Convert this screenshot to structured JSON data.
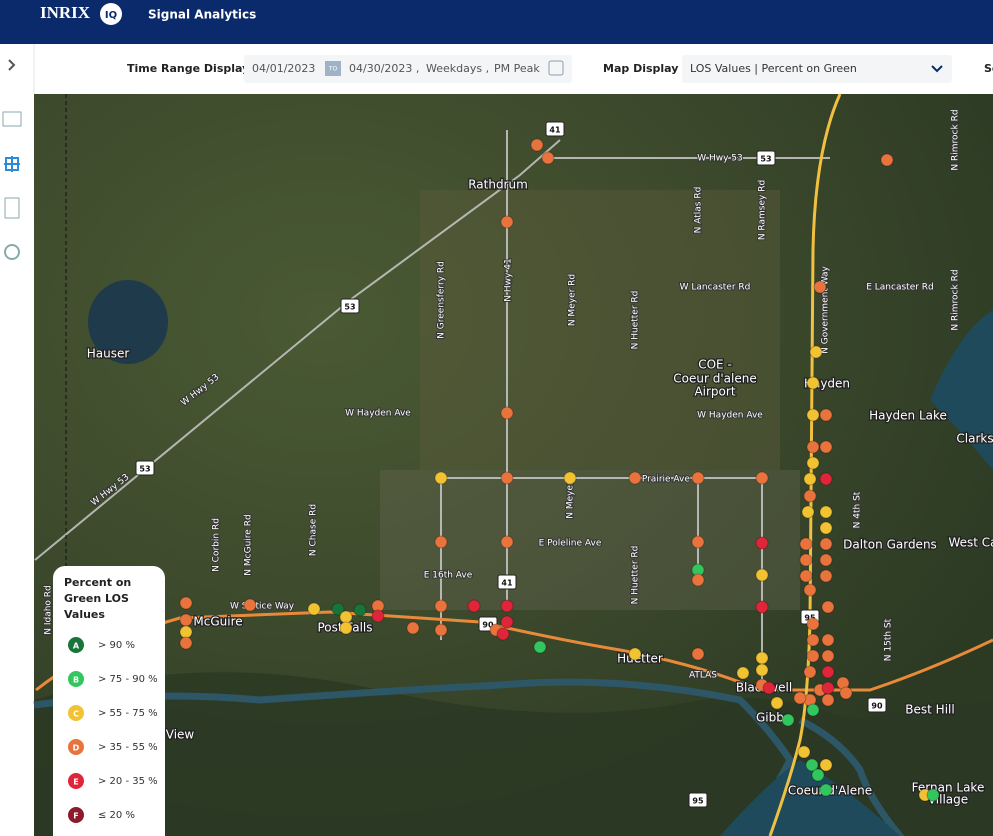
{
  "header": {
    "logo": "INRIX",
    "logo_badge": "IQ",
    "app_title": "Signal Analytics"
  },
  "toolbar": {
    "time_range_label": "Time Range Display",
    "start_date": "04/01/2023",
    "to_badge": "TO",
    "end_date": "04/30/2023 ,",
    "days": "Weekdays ,",
    "period": "PM Peak",
    "map_display_label": "Map Display",
    "map_display_value": "LOS Values | Percent on Green",
    "cut_text": "Se"
  },
  "map": {
    "places": [
      "Rathdrum",
      "Hauser",
      "Hayden",
      "Hayden Lake",
      "Clarks",
      "Dalton Gardens",
      "West Ca",
      "Post Falls",
      "McGuire",
      "Huetter",
      "Blackwell",
      "Gibbs",
      "Coeur d'Alene",
      "Best Hill",
      "Fernan Lake",
      "Village",
      "COE -",
      "Coeur d'alene",
      "Airport",
      "View"
    ],
    "roads": [
      "W Hwy 53",
      "W Lancaster Rd",
      "E Lancaster Rd",
      "W Hayden Ave",
      "W Hayden Ave",
      "W Prairie Ave",
      "E Poleline Ave",
      "E 16th Ave",
      "W Seltice Way",
      "W Hwy 53",
      "W Hwy 53",
      "ATLAS",
      "N Greensferry Rd",
      "N Hwy 41",
      "N Meyer Rd",
      "N Huetter Rd",
      "N Atlas Rd",
      "N Ramsey Rd",
      "N Government Way",
      "N Rimrock Rd",
      "N Corbin Rd",
      "N McGuire Rd",
      "N Chase Rd",
      "N Meyer",
      "N 4th St",
      "N 15th St",
      "N Idaho Rd",
      "N Rimrock Rd",
      "N Huetter Rd"
    ],
    "shields": [
      "41",
      "53",
      "53",
      "53",
      "41",
      "90",
      "95",
      "90",
      "95"
    ],
    "signals": [
      "D",
      "D",
      "D",
      "D",
      "C",
      "D",
      "C",
      "D",
      "D",
      "D",
      "D",
      "D",
      "D",
      "E",
      "B",
      "C",
      "D",
      "E",
      "D",
      "D",
      "C",
      "D",
      "D",
      "C",
      "A",
      "C",
      "C",
      "A",
      "D",
      "E",
      "D",
      "D",
      "D",
      "E",
      "D",
      "E",
      "E",
      "E",
      "B",
      "C",
      "D",
      "C",
      "C",
      "C",
      "D",
      "E",
      "C",
      "B",
      "D",
      "D",
      "D",
      "B",
      "D",
      "D",
      "D",
      "E",
      "E",
      "D",
      "D",
      "D",
      "D",
      "D",
      "D",
      "D",
      "D",
      "D",
      "D",
      "D",
      "D",
      "D",
      "D",
      "C",
      "C",
      "C",
      "D",
      "C",
      "E",
      "C",
      "D",
      "D",
      "C",
      "D",
      "C",
      "C",
      "D",
      "D",
      "C",
      "B",
      "B",
      "B",
      "C",
      "C",
      "B"
    ]
  },
  "legend": {
    "title_lines": [
      "Percent on",
      "Green LOS",
      "Values"
    ],
    "items": [
      {
        "grade": "A",
        "label": "> 90 %",
        "color": "#17753a"
      },
      {
        "grade": "B",
        "label": "> 75 - 90 %",
        "color": "#33c65e"
      },
      {
        "grade": "C",
        "label": "> 55 - 75 %",
        "color": "#f1c232"
      },
      {
        "grade": "D",
        "label": "> 35 - 55 %",
        "color": "#e8733c"
      },
      {
        "grade": "E",
        "label": "> 20 - 35 %",
        "color": "#df2539"
      },
      {
        "grade": "F",
        "label": "≤ 20 %",
        "color": "#8c1b2c"
      }
    ]
  }
}
